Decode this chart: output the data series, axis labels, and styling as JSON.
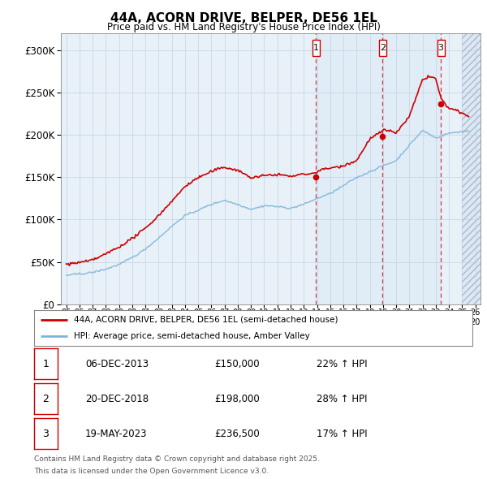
{
  "title": "44A, ACORN DRIVE, BELPER, DE56 1EL",
  "subtitle": "Price paid vs. HM Land Registry's House Price Index (HPI)",
  "legend_line1": "44A, ACORN DRIVE, BELPER, DE56 1EL (semi-detached house)",
  "legend_line2": "HPI: Average price, semi-detached house, Amber Valley",
  "transactions": [
    {
      "num": "1",
      "date": "06-DEC-2013",
      "price": "£150,000",
      "hpi_pct": "22% ↑ HPI",
      "x_year": 2013.92,
      "y_val": 150000
    },
    {
      "num": "2",
      "date": "20-DEC-2018",
      "price": "£198,000",
      "hpi_pct": "28% ↑ HPI",
      "x_year": 2018.96,
      "y_val": 198000
    },
    {
      "num": "3",
      "date": "19-MAY-2023",
      "price": "£236,500",
      "hpi_pct": "17% ↑ HPI",
      "x_year": 2023.38,
      "y_val": 236500
    }
  ],
  "footnote_line1": "Contains HM Land Registry data © Crown copyright and database right 2025.",
  "footnote_line2": "This data is licensed under the Open Government Licence v3.0.",
  "hpi_color": "#7ab4d8",
  "price_color": "#cc0000",
  "background_color": "#ffffff",
  "plot_bg_color": "#e8f0f8",
  "shade_color": "#dce8f4",
  "xlim_low": 1994.6,
  "xlim_high": 2026.4,
  "ylim_low": 0,
  "ylim_high": 320000
}
